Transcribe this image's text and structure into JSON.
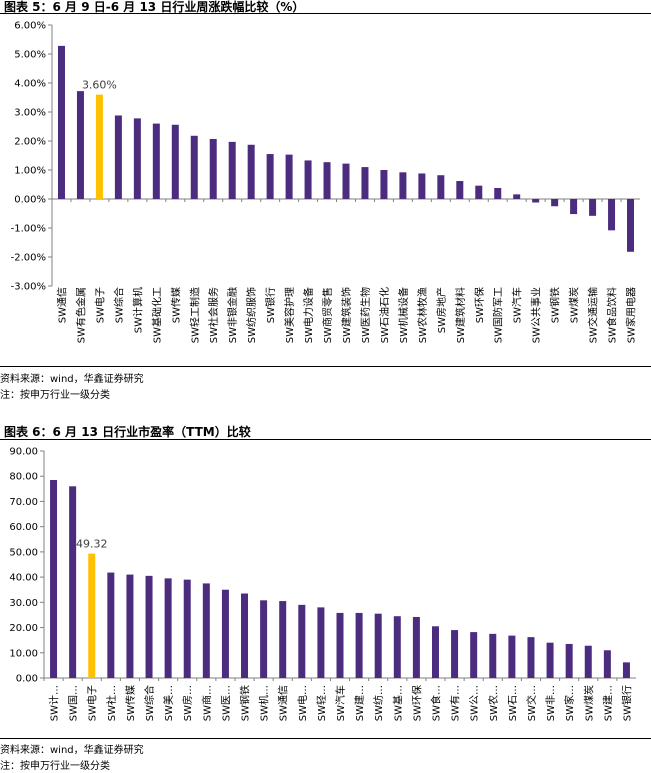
{
  "chart_data": [
    {
      "type": "bar",
      "title": "图表 5：6 月 9 日-6 月 13 日行业周涨跌幅比较（%）",
      "ylim": [
        -3,
        6
      ],
      "ytick_step": 1,
      "ytick_format": "percent",
      "highlight_index": 2,
      "highlight_label": "3.60%",
      "bar_color": "#4b2c7f",
      "highlight_color": "#ffc000",
      "categories": [
        "SW通信",
        "SW有色金属",
        "SW电子",
        "SW综合",
        "SW计算机",
        "SW基础化工",
        "SW传媒",
        "SW轻工制造",
        "SW社会服务",
        "SW非银金融",
        "SW纺织服饰",
        "SW银行",
        "SW美容护理",
        "SW电力设备",
        "SW商贸零售",
        "SW建筑装饰",
        "SW医药生物",
        "SW石油石化",
        "SW机械设备",
        "SW农林牧渔",
        "SW房地产",
        "SW建筑材料",
        "SW环保",
        "SW国防军工",
        "SW汽车",
        "SW公共事业",
        "SW钢铁",
        "SW煤炭",
        "SW交通运输",
        "SW食品饮料",
        "SW家用电器"
      ],
      "values": [
        5.28,
        3.72,
        3.6,
        2.88,
        2.78,
        2.6,
        2.56,
        2.18,
        2.07,
        1.97,
        1.87,
        1.55,
        1.53,
        1.33,
        1.27,
        1.22,
        1.1,
        1.0,
        0.92,
        0.88,
        0.82,
        0.62,
        0.46,
        0.38,
        0.16,
        -0.12,
        -0.25,
        -0.52,
        -0.58,
        -1.08,
        -1.82
      ]
    },
    {
      "type": "bar",
      "title": "图表 6：6 月 13 日行业市盈率（TTM）比较",
      "ylim": [
        0,
        90
      ],
      "ytick_step": 10,
      "ytick_format": "fixed2",
      "highlight_index": 2,
      "highlight_label": "49.32",
      "bar_color": "#4b2c7f",
      "highlight_color": "#ffc000",
      "categories": [
        "SW计…",
        "SW国…",
        "SW电子",
        "SW社…",
        "SW传媒",
        "SW综合",
        "SW美…",
        "SW房…",
        "SW商…",
        "SW医…",
        "SW钢铁",
        "SW机…",
        "SW通信",
        "SW电…",
        "SW轻…",
        "SW汽车",
        "SW建…",
        "SW纺…",
        "SW基…",
        "SW环保",
        "SW食…",
        "SW有…",
        "SW公…",
        "SW农…",
        "SW石…",
        "SW交…",
        "SW非…",
        "SW家…",
        "SW煤炭",
        "SW建…",
        "SW银行"
      ],
      "values": [
        78.5,
        76.0,
        49.32,
        41.8,
        41.0,
        40.5,
        39.5,
        39.0,
        37.5,
        35.0,
        33.5,
        30.8,
        30.5,
        29.0,
        28.0,
        25.8,
        25.8,
        25.5,
        24.5,
        24.2,
        20.5,
        19.0,
        18.2,
        17.5,
        16.8,
        16.2,
        14.0,
        13.5,
        12.8,
        11.0,
        6.2
      ]
    }
  ],
  "notes": {
    "source1": "资料来源：wind，华鑫证券研究",
    "note1": "注：按申万行业一级分类",
    "source2": "资料来源：wind，华鑫证券研究",
    "note2": "注：按申万行业一级分类"
  }
}
